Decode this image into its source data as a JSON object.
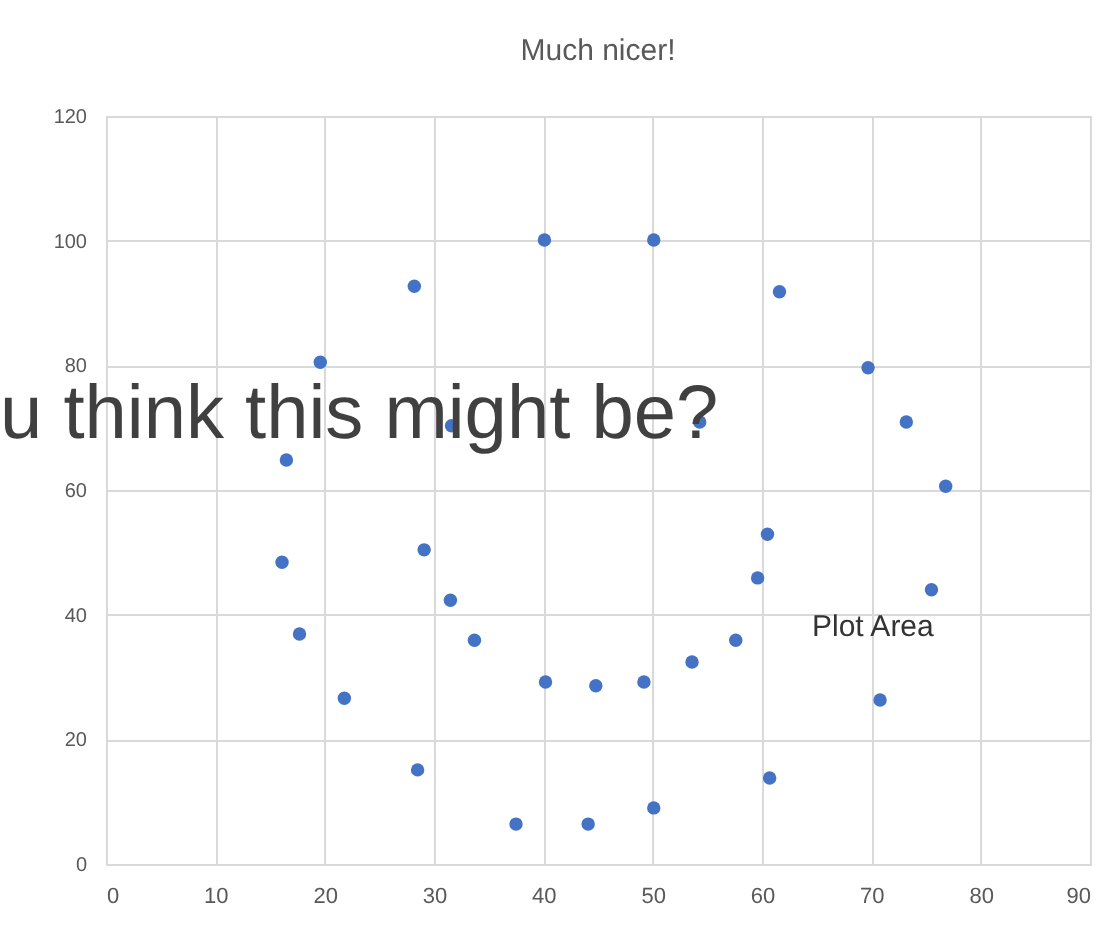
{
  "chart_data": {
    "type": "scatter",
    "title": "Much nicer!",
    "x": [
      16.5,
      19.6,
      28.2,
      31.6,
      40.1,
      50.1,
      61.6,
      69.7,
      73.2,
      76.8,
      54.3,
      16.1,
      17.7,
      21.8,
      29.1,
      31.5,
      33.7,
      28.5,
      37.5,
      40.2,
      44.1,
      44.8,
      49.2,
      50.1,
      53.6,
      57.6,
      59.6,
      60.5,
      60.7,
      70.8,
      75.5
    ],
    "series": [
      {
        "color": "#4472c4",
        "values": [
          64.8,
          80.5,
          92.7,
          70.3,
          100.1,
          100.1,
          91.8,
          79.6,
          70.9,
          60.6,
          70.9,
          48.4,
          36.9,
          26.6,
          50.4,
          42.3,
          35.9,
          15.1,
          6.4,
          29.2,
          6.4,
          28.6,
          29.2,
          9.0,
          32.4,
          35.9,
          45.9,
          52.9,
          13.8,
          26.3,
          44.0
        ]
      }
    ],
    "xlim": [
      0,
      90
    ],
    "xticks": [
      0,
      10,
      20,
      30,
      40,
      50,
      60,
      70,
      80,
      90
    ],
    "ylim": [
      0,
      120
    ],
    "yticks": [
      0,
      20,
      40,
      60,
      80,
      100,
      120
    ],
    "grid": true,
    "marker": "circle",
    "annotations": [
      "u think this might be?",
      "Plot Area"
    ]
  }
}
